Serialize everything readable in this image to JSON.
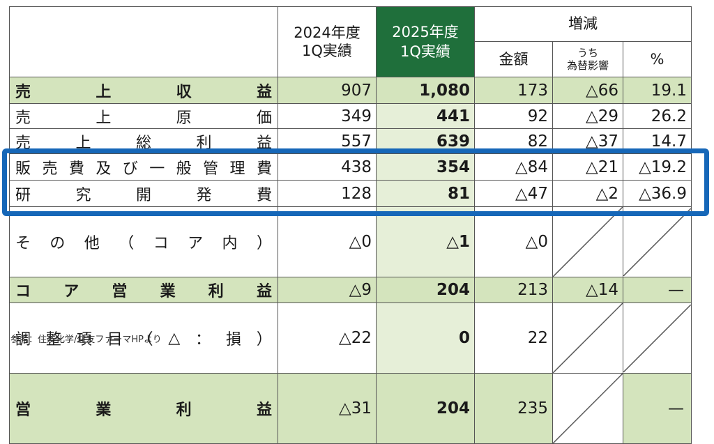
{
  "header": {
    "col_2024": [
      "2024年度",
      "1Q実績"
    ],
    "col_2025": [
      "2025年度",
      "1Q実績"
    ],
    "change_group": "増減",
    "change_amount": "金額",
    "change_fx": [
      "うち",
      "為替影響"
    ],
    "change_pct": "%"
  },
  "rows": [
    {
      "label": "売上収益",
      "v2024": "907",
      "v2025": "1,080",
      "amount": "173",
      "fx": "△66",
      "pct": "19.1",
      "highlight": true,
      "bold": true
    },
    {
      "label": "売上原価",
      "v2024": "349",
      "v2025": "441",
      "amount": "92",
      "fx": "△29",
      "pct": "26.2",
      "highlight": false,
      "bold": false
    },
    {
      "label": "売上総利益",
      "v2024": "557",
      "v2025": "639",
      "amount": "82",
      "fx": "△37",
      "pct": "14.7",
      "highlight": false,
      "bold": false
    },
    {
      "label": "販売費及び一般管理費",
      "v2024": "438",
      "v2025": "354",
      "amount": "△84",
      "fx": "△21",
      "pct": "△19.2",
      "highlight": false,
      "bold": false
    },
    {
      "label": "研究開発費",
      "v2024": "128",
      "v2025": "81",
      "amount": "△47",
      "fx": "△2",
      "pct": "△36.9",
      "highlight": false,
      "bold": false
    },
    {
      "label": "その他（コア内）",
      "v2024": "△0",
      "v2025": "△1",
      "amount": "△0",
      "fx": "",
      "pct": "",
      "highlight": false,
      "bold": false
    },
    {
      "label": "コア営業利益",
      "v2024": "△9",
      "v2025": "204",
      "amount": "213",
      "fx": "△14",
      "pct": "—",
      "highlight": true,
      "bold": true
    },
    {
      "label": "調整項目（△：損）",
      "v2024": "△22",
      "v2025": "0",
      "amount": "22",
      "fx": "",
      "pct": "",
      "highlight": false,
      "bold": false
    },
    {
      "label": "営業利益",
      "v2024": "△31",
      "v2025": "204",
      "amount": "235",
      "fx": "",
      "pct": "—",
      "highlight": true,
      "bold": true
    }
  ],
  "footnote": "参考：住友化学/住友ファーマHPより",
  "colors": {
    "header_2025": "#1f6f3b",
    "highlight_row": "#d4e4bd",
    "col_2025": "#e6efd8",
    "box": "#1667b8"
  }
}
